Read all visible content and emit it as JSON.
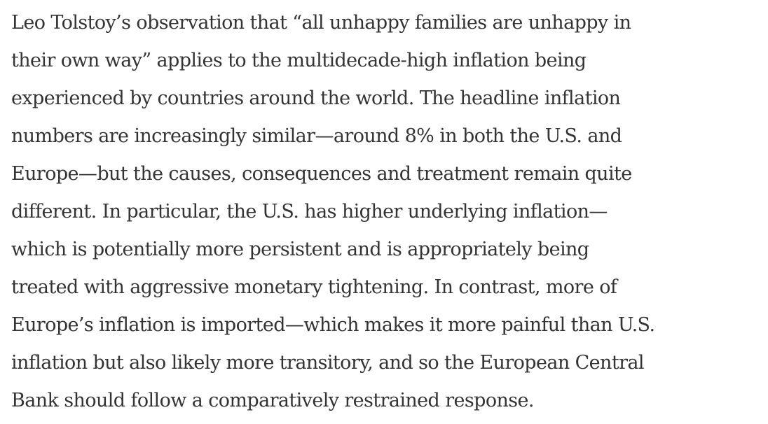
{
  "article": {
    "paragraph_lines": [
      "Leo Tolstoy’s observation that “all unhappy families are unhappy in",
      "their own way” applies to the multidecade-high inflation being",
      "experienced by countries around the world. The headline inflation",
      "numbers are increasingly similar—around 8% in both the U.S. and",
      "Europe—but the causes, consequences and treatment remain quite",
      "different. In particular, the U.S. has higher underlying inflation—",
      "which is potentially more persistent and is appropriately being",
      "treated with aggressive monetary tightening. In contrast, more of",
      "Europe’s inflation is imported—which makes it more painful than U.S.",
      "inflation but also likely more transitory, and so the European Central",
      "Bank should follow a comparatively restrained response."
    ]
  }
}
